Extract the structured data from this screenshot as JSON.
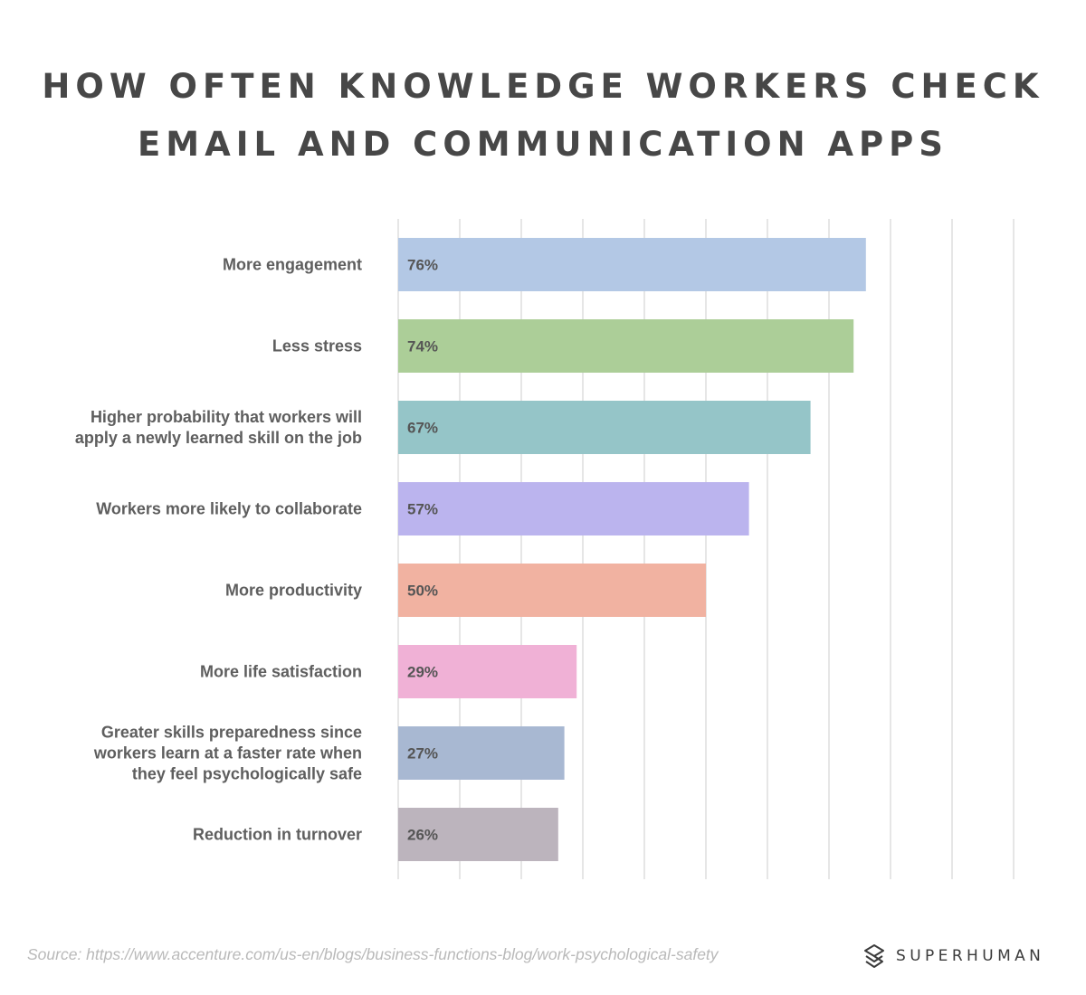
{
  "page": {
    "source_text": "Source: https://www.accenture.com/us-en/blogs/business-functions-blog/work-psychological-safety",
    "brand_name": "SUPERHUMAN",
    "brand_icon": "superhuman-logo-icon"
  },
  "chart_data": {
    "type": "bar",
    "orientation": "horizontal",
    "title": "HOW OFTEN KNOWLEDGE WORKERS CHECK EMAIL AND COMMUNICATION APPS",
    "title_lines": [
      "HOW OFTEN KNOWLEDGE WORKERS CHECK",
      "EMAIL AND COMMUNICATION APPS"
    ],
    "xlabel": "",
    "ylabel": "",
    "xlim": [
      0,
      100
    ],
    "grid": true,
    "grid_step": 10,
    "legend": "none",
    "categories": [
      "More engagement",
      "Less stress",
      "Higher probability that workers will apply a newly learned skill on the job",
      "Workers more likely to collaborate",
      "More productivity",
      "More life satisfaction",
      "Greater skills preparedness since workers learn at a faster rate when they feel psychologically safe",
      "Reduction in turnover"
    ],
    "category_lines": [
      [
        "More engagement"
      ],
      [
        "Less stress"
      ],
      [
        "Higher probability that workers will",
        "apply a newly learned skill on the job"
      ],
      [
        "Workers more likely to collaborate"
      ],
      [
        "More productivity"
      ],
      [
        "More life satisfaction"
      ],
      [
        "Greater skills preparedness since",
        "workers learn at a faster rate when",
        "they feel psychologically safe"
      ],
      [
        "Reduction in turnover"
      ]
    ],
    "values": [
      76,
      74,
      67,
      57,
      50,
      29,
      27,
      26
    ],
    "value_labels": [
      "76%",
      "74%",
      "67%",
      "57%",
      "50%",
      "29%",
      "27%",
      "26%"
    ],
    "colors": [
      "#b3c8e5",
      "#acce98",
      "#95c5c8",
      "#bbb4ee",
      "#f1b2a1",
      "#f0b1d6",
      "#a8b8d2",
      "#bcb4bd"
    ],
    "grid_color": "#e6e6e6",
    "label_color": "#5e5e5e",
    "value_label_color": "#555555"
  }
}
